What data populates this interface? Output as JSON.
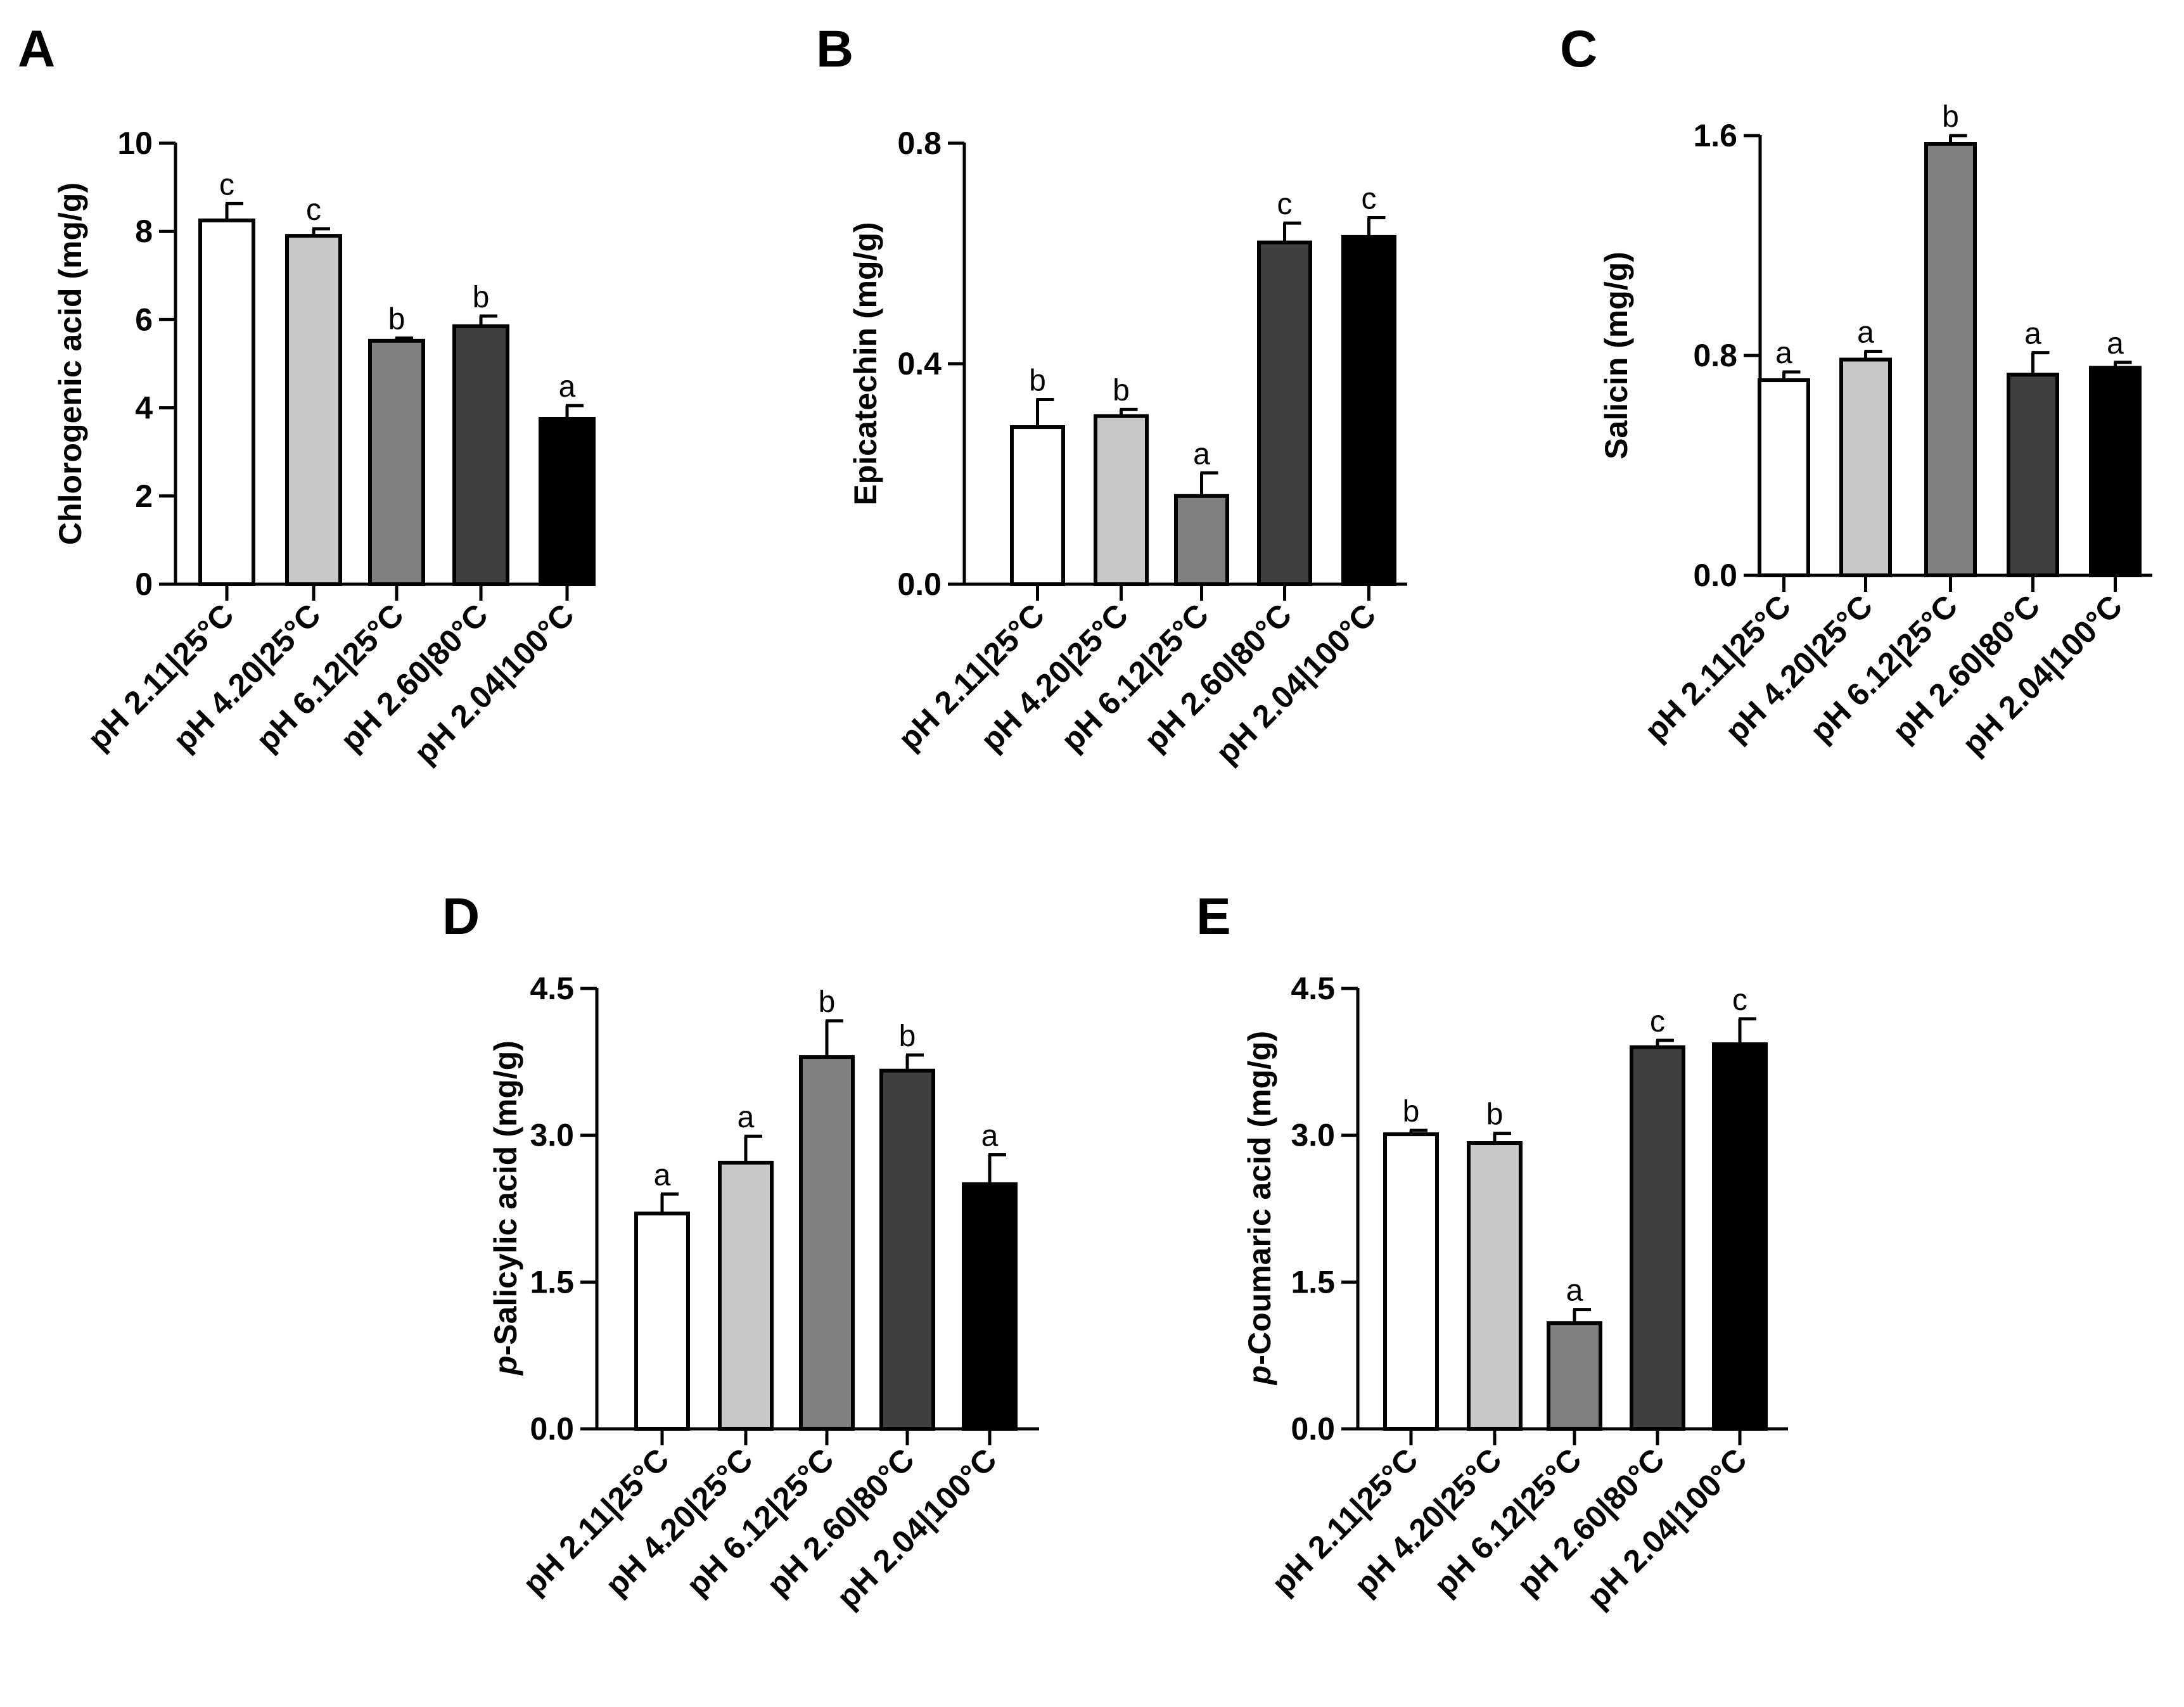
{
  "categories": [
    "pH 2.11|25°C",
    "pH 4.20|25°C",
    "pH 6.12|25°C",
    "pH 2.60|80°C",
    "pH 2.04|100°C"
  ],
  "bar_colors": [
    "#ffffff",
    "#c8c8c8",
    "#808080",
    "#404040",
    "#000000"
  ],
  "chart_data": [
    {
      "type": "bar",
      "panel": "A",
      "ylabel_italic": "",
      "ylabel": "Chlorogenic acid (mg/g)",
      "ylim": [
        0,
        10
      ],
      "yticks": [
        0,
        2,
        4,
        6,
        8,
        10
      ],
      "ytick_labels": [
        "0",
        "2",
        "4",
        "6",
        "8",
        "10"
      ],
      "categories": [
        "pH 2.11|25°C",
        "pH 4.20|25°C",
        "pH 6.12|25°C",
        "pH 2.60|80°C",
        "pH 2.04|100°C"
      ],
      "values": [
        8.25,
        7.9,
        5.52,
        5.85,
        3.75
      ],
      "errors": [
        0.38,
        0.16,
        0.06,
        0.23,
        0.3
      ],
      "significance": [
        "c",
        "c",
        "b",
        "b",
        "a"
      ]
    },
    {
      "type": "bar",
      "panel": "B",
      "ylabel_italic": "",
      "ylabel": "Epicatechin (mg/g)",
      "ylim": [
        0,
        0.8
      ],
      "yticks": [
        0,
        0.4,
        0.8
      ],
      "ytick_labels": [
        "0.0",
        "0.4",
        "0.8"
      ],
      "categories": [
        "pH 2.11|25°C",
        "pH 4.20|25°C",
        "pH 6.12|25°C",
        "pH 2.60|80°C",
        "pH 2.04|100°C"
      ],
      "values": [
        0.285,
        0.305,
        0.16,
        0.62,
        0.63
      ],
      "errors": [
        0.05,
        0.012,
        0.042,
        0.035,
        0.035
      ],
      "significance": [
        "b",
        "b",
        "a",
        "c",
        "c"
      ]
    },
    {
      "type": "bar",
      "panel": "C",
      "ylabel_italic": "",
      "ylabel": "Salicin (mg/g)",
      "ylim": [
        0,
        1.6
      ],
      "yticks": [
        0,
        0.8,
        1.6
      ],
      "ytick_labels": [
        "0.0",
        "0.8",
        "1.6"
      ],
      "categories": [
        "pH 2.11|25°C",
        "pH 4.20|25°C",
        "pH 6.12|25°C",
        "pH 2.60|80°C",
        "pH 2.04|100°C"
      ],
      "values": [
        0.71,
        0.785,
        1.57,
        0.73,
        0.755
      ],
      "errors": [
        0.03,
        0.03,
        0.03,
        0.08,
        0.02
      ],
      "significance": [
        "a",
        "a",
        "b",
        "a",
        "a"
      ]
    },
    {
      "type": "bar",
      "panel": "D",
      "ylabel_italic": "p",
      "ylabel": "-Salicylic acid (mg/g)",
      "ylim": [
        0,
        4.5
      ],
      "yticks": [
        0,
        1.5,
        3.0,
        4.5
      ],
      "ytick_labels": [
        "0.0",
        "1.5",
        "3.0",
        "4.5"
      ],
      "categories": [
        "pH 2.11|25°C",
        "pH 4.20|25°C",
        "pH 6.12|25°C",
        "pH 2.60|80°C",
        "pH 2.04|100°C"
      ],
      "values": [
        2.2,
        2.72,
        3.8,
        3.66,
        2.5
      ],
      "errors": [
        0.2,
        0.27,
        0.37,
        0.16,
        0.3
      ],
      "significance": [
        "a",
        "a",
        "b",
        "b",
        "a"
      ]
    },
    {
      "type": "bar",
      "panel": "E",
      "ylabel_italic": "p",
      "ylabel": "-Coumaric acid (mg/g)",
      "ylim": [
        0,
        4.5
      ],
      "yticks": [
        0,
        1.5,
        3.0,
        4.5
      ],
      "ytick_labels": [
        "0.0",
        "1.5",
        "3.0",
        "4.5"
      ],
      "categories": [
        "pH 2.11|25°C",
        "pH 4.20|25°C",
        "pH 6.12|25°C",
        "pH 2.60|80°C",
        "pH 2.04|100°C"
      ],
      "values": [
        3.01,
        2.92,
        1.08,
        3.9,
        3.93
      ],
      "errors": [
        0.04,
        0.1,
        0.14,
        0.07,
        0.26
      ],
      "significance": [
        "b",
        "b",
        "a",
        "c",
        "c"
      ]
    }
  ]
}
